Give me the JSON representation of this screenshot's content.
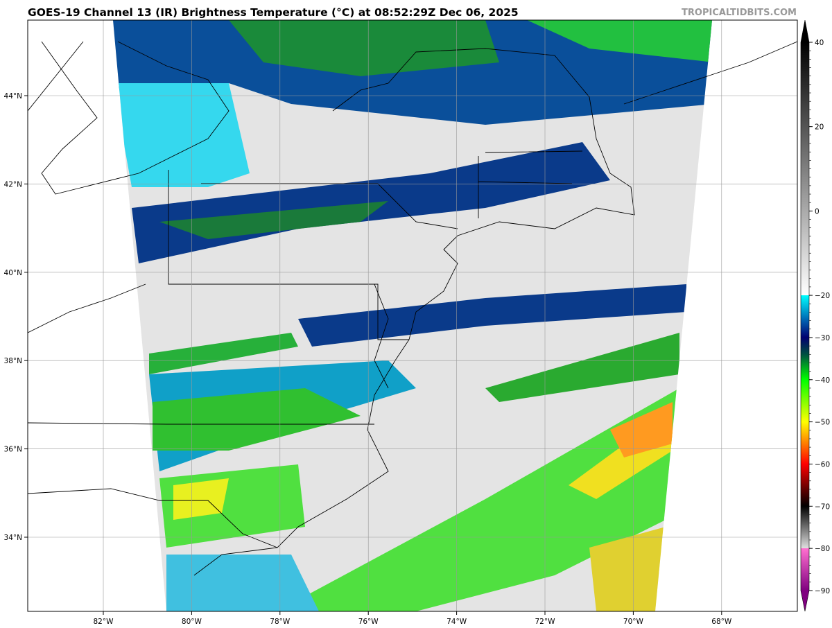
{
  "title": "GOES-19 Channel 13 (IR) Brightness Temperature (°C) at 08:52:29Z Dec 06, 2025",
  "watermark": "TROPICALTIDBITS.COM",
  "map": {
    "latitude_labels": [
      "44°N",
      "42°N",
      "40°N",
      "38°N",
      "36°N",
      "34°N"
    ],
    "latitudes": [
      44,
      42,
      40,
      38,
      36,
      34
    ],
    "longitude_labels": [
      "82°W",
      "80°W",
      "78°W",
      "76°W",
      "74°W",
      "72°W",
      "70°W",
      "68°W"
    ],
    "longitudes": [
      -82,
      -80,
      -78,
      -76,
      -74,
      -72,
      -70,
      -68
    ],
    "gridlines": true
  },
  "colorbar": {
    "tick_labels": [
      "40",
      "20",
      "0",
      "−20",
      "−30",
      "−40",
      "−50",
      "−60",
      "−70",
      "−80",
      "−90"
    ],
    "tick_values": [
      40,
      20,
      0,
      -20,
      -30,
      -40,
      -50,
      -60,
      -70,
      -80,
      -90
    ],
    "range": [
      -90,
      40
    ],
    "extend": "both",
    "stops": [
      {
        "value": 40,
        "color": "#000000"
      },
      {
        "value": -20,
        "color": "#ffffff"
      },
      {
        "value": -20.01,
        "color": "#00ffff"
      },
      {
        "value": -26,
        "color": "#0060b0"
      },
      {
        "value": -30,
        "color": "#000070"
      },
      {
        "value": -34,
        "color": "#005040"
      },
      {
        "value": -40,
        "color": "#00ff00"
      },
      {
        "value": -50,
        "color": "#ffff00"
      },
      {
        "value": -55,
        "color": "#ff8000"
      },
      {
        "value": -60,
        "color": "#ff0000"
      },
      {
        "value": -66,
        "color": "#600000"
      },
      {
        "value": -70,
        "color": "#000000"
      },
      {
        "value": -79.99,
        "color": "#e0e0e0"
      },
      {
        "value": -80,
        "color": "#ff70d0"
      },
      {
        "value": -90,
        "color": "#800080"
      }
    ]
  }
}
